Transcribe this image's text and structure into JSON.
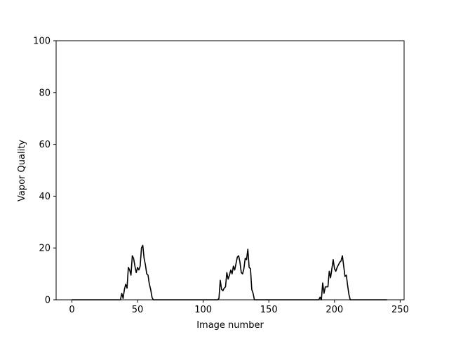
{
  "chart_data": {
    "type": "line",
    "title": "",
    "xlabel": "Image number",
    "ylabel": "Vapor Quality",
    "xlim": [
      -12,
      253
    ],
    "ylim": [
      0,
      100
    ],
    "xticks": [
      0,
      50,
      100,
      150,
      200,
      250
    ],
    "yticks": [
      0,
      20,
      40,
      60,
      80,
      100
    ],
    "grid": false,
    "series": [
      {
        "color": "#000000",
        "points": [
          [
            0,
            0
          ],
          [
            37,
            0
          ],
          [
            38,
            2.5
          ],
          [
            39,
            0.5
          ],
          [
            40,
            4
          ],
          [
            41,
            6
          ],
          [
            42,
            4.5
          ],
          [
            43,
            12.5
          ],
          [
            44,
            11.5
          ],
          [
            45,
            9.5
          ],
          [
            46,
            17
          ],
          [
            47,
            16
          ],
          [
            48,
            13
          ],
          [
            49,
            10.5
          ],
          [
            50,
            12.5
          ],
          [
            51,
            11.5
          ],
          [
            52,
            13
          ],
          [
            53,
            20
          ],
          [
            54,
            21
          ],
          [
            55,
            16
          ],
          [
            56,
            13.5
          ],
          [
            57,
            10
          ],
          [
            58,
            9.5
          ],
          [
            59,
            6
          ],
          [
            60,
            4
          ],
          [
            61,
            1
          ],
          [
            62,
            0
          ],
          [
            111,
            0
          ],
          [
            112,
            0.5
          ],
          [
            113,
            7.5
          ],
          [
            114,
            4
          ],
          [
            115,
            3.5
          ],
          [
            116,
            4.5
          ],
          [
            117,
            5
          ],
          [
            118,
            10.5
          ],
          [
            119,
            8
          ],
          [
            120,
            9.5
          ],
          [
            121,
            11.5
          ],
          [
            122,
            10
          ],
          [
            123,
            13
          ],
          [
            124,
            11.5
          ],
          [
            125,
            14
          ],
          [
            126,
            16.5
          ],
          [
            127,
            17
          ],
          [
            128,
            14.5
          ],
          [
            129,
            10.5
          ],
          [
            130,
            10
          ],
          [
            131,
            12
          ],
          [
            132,
            16
          ],
          [
            133,
            15.5
          ],
          [
            134,
            19.5
          ],
          [
            135,
            12.5
          ],
          [
            136,
            12
          ],
          [
            137,
            4
          ],
          [
            138,
            2.5
          ],
          [
            139,
            0
          ],
          [
            188,
            0
          ],
          [
            189,
            1
          ],
          [
            190,
            0
          ],
          [
            191,
            6.5
          ],
          [
            192,
            2.5
          ],
          [
            193,
            5
          ],
          [
            194,
            5
          ],
          [
            195,
            5
          ],
          [
            196,
            11
          ],
          [
            197,
            8.5
          ],
          [
            198,
            12
          ],
          [
            199,
            15.5
          ],
          [
            200,
            12
          ],
          [
            201,
            11
          ],
          [
            202,
            12.5
          ],
          [
            203,
            13.5
          ],
          [
            204,
            14.5
          ],
          [
            205,
            15
          ],
          [
            206,
            17
          ],
          [
            207,
            13
          ],
          [
            208,
            9
          ],
          [
            209,
            9.5
          ],
          [
            210,
            5.5
          ],
          [
            211,
            2
          ],
          [
            212,
            0
          ],
          [
            240,
            0
          ]
        ]
      }
    ]
  }
}
